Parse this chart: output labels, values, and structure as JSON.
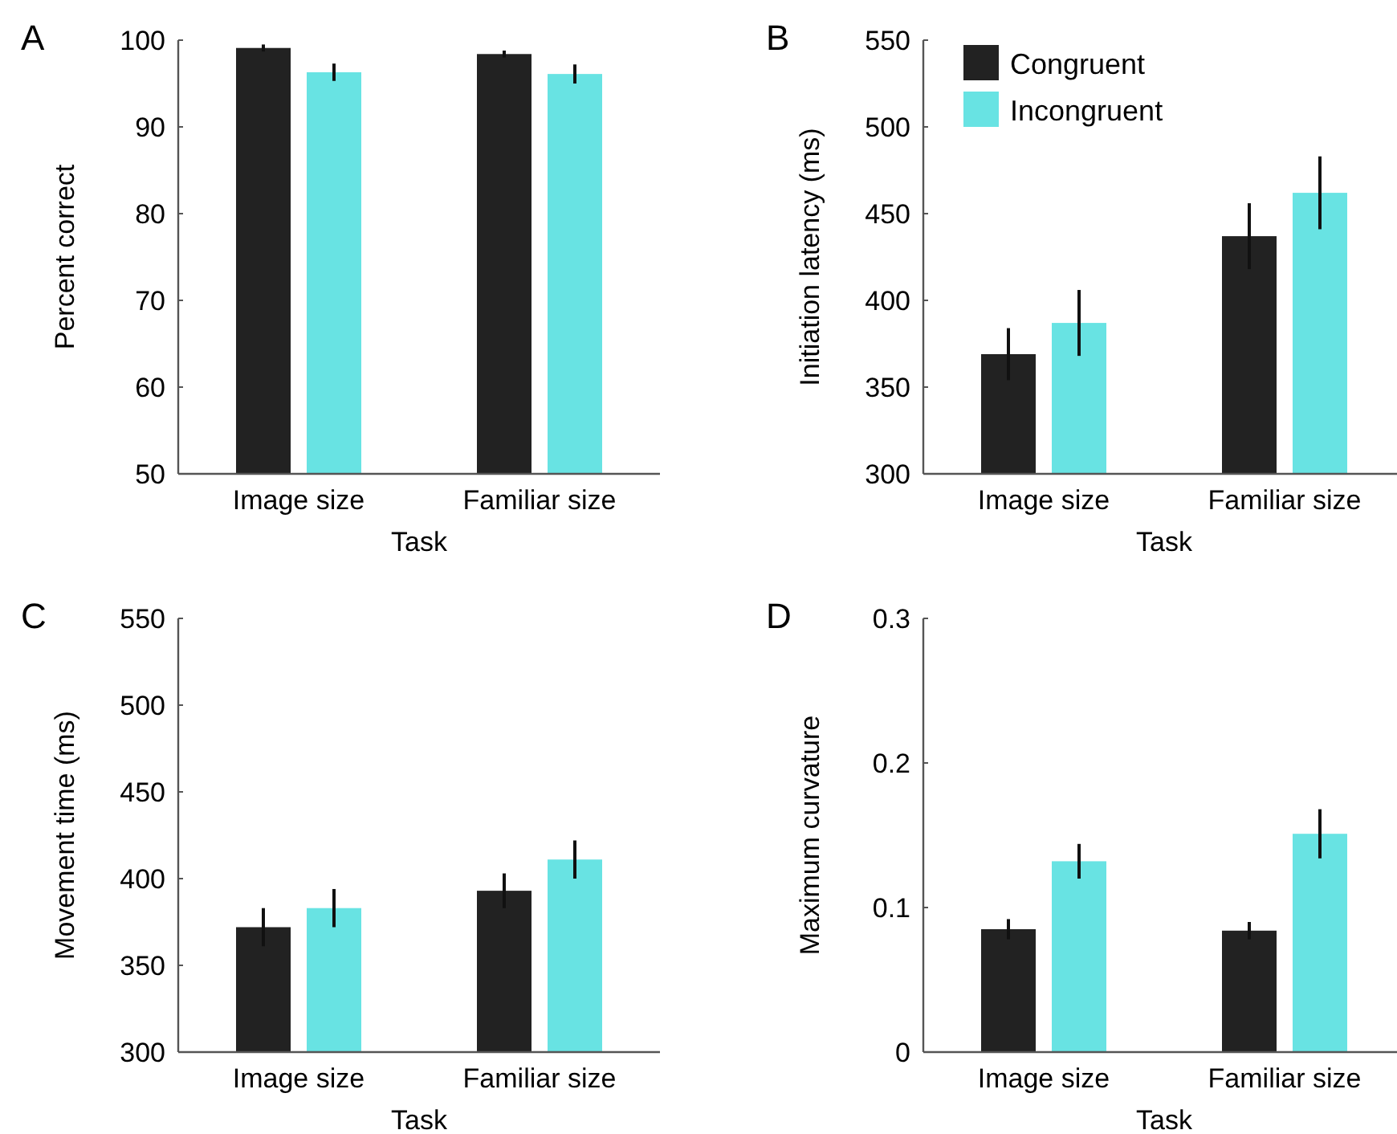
{
  "chart_data": [
    {
      "type": "bar",
      "title": "A",
      "categories": [
        "Image size",
        "Familiar size"
      ],
      "xlabel": "Task",
      "ylabel": "Percent correct",
      "ylim": [
        50,
        100
      ],
      "yticks": [
        50,
        60,
        70,
        80,
        90,
        100
      ],
      "series": [
        {
          "color": "#222222",
          "values": [
            99.1,
            98.4
          ],
          "errors": [
            0.4,
            0.4
          ]
        },
        {
          "color": "#68e3e3",
          "values": [
            96.3,
            96.1
          ],
          "errors": [
            1.0,
            1.1
          ]
        }
      ]
    },
    {
      "type": "bar",
      "title": "B",
      "categories": [
        "Image size",
        "Familiar size"
      ],
      "xlabel": "Task",
      "ylabel": "Initiation latency (ms)",
      "ylim": [
        300,
        550
      ],
      "yticks": [
        300,
        350,
        400,
        450,
        500,
        550
      ],
      "legend": "top left",
      "series": [
        {
          "name": "Congruent",
          "color": "#222222",
          "values": [
            369,
            437
          ],
          "errors": [
            15,
            19
          ]
        },
        {
          "name": "Incongruent",
          "color": "#68e3e3",
          "values": [
            387,
            462
          ],
          "errors": [
            19,
            21
          ]
        }
      ]
    },
    {
      "type": "bar",
      "title": "C",
      "categories": [
        "Image size",
        "Familiar size"
      ],
      "xlabel": "Task",
      "ylabel": "Movement time (ms)",
      "ylim": [
        300,
        550
      ],
      "yticks": [
        300,
        350,
        400,
        450,
        500,
        550
      ],
      "series": [
        {
          "color": "#222222",
          "values": [
            372,
            393
          ],
          "errors": [
            11,
            10
          ]
        },
        {
          "color": "#68e3e3",
          "values": [
            383,
            411
          ],
          "errors": [
            11,
            11
          ]
        }
      ]
    },
    {
      "type": "bar",
      "title": "D",
      "categories": [
        "Image size",
        "Familiar size"
      ],
      "xlabel": "Task",
      "ylabel": "Maximum curvature",
      "ylim": [
        0,
        0.3
      ],
      "yticks": [
        0,
        0.1,
        0.2,
        0.3
      ],
      "series": [
        {
          "color": "#222222",
          "values": [
            0.085,
            0.084
          ],
          "errors": [
            0.007,
            0.006
          ]
        },
        {
          "color": "#68e3e3",
          "values": [
            0.132,
            0.151
          ],
          "errors": [
            0.012,
            0.017
          ]
        }
      ]
    }
  ]
}
